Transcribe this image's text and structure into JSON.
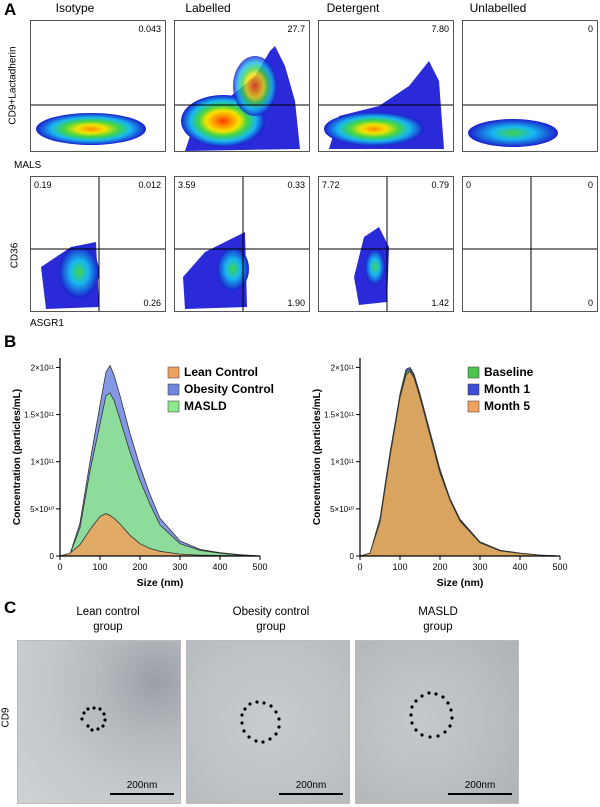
{
  "panelA": {
    "label": "A",
    "columns": [
      "Isotype",
      "Labelled",
      "Detergent",
      "Unlabelled"
    ],
    "top_row": {
      "y_axis_label": "CD9+Lactadherin",
      "x_axis_label": "MALS",
      "values": [
        "0.043",
        "27.7",
        "7.80",
        "0"
      ]
    },
    "bottom_row": {
      "y_axis_label": "CD36",
      "x_axis_label": "ASGR1",
      "quadrants": [
        {
          "ul": "0.19",
          "ur": "0.012",
          "lr": "0.26"
        },
        {
          "ul": "3.59",
          "ur": "0.33",
          "lr": "1.90"
        },
        {
          "ul": "7.72",
          "ur": "0.79",
          "lr": "1.42"
        },
        {
          "ul": "0",
          "ur": "0",
          "lr": "0"
        }
      ]
    }
  },
  "panelB": {
    "label": "B",
    "chart_data": [
      {
        "type": "area",
        "xlabel": "Size (nm)",
        "ylabel": "Concentration (particles/mL)",
        "xlim": [
          0,
          500
        ],
        "ylim": [
          0,
          210000000000.0
        ],
        "xticks": [
          "0",
          "100",
          "200",
          "300",
          "400",
          "500"
        ],
        "yticks": [
          "0",
          "5×10¹⁰",
          "1×10¹¹",
          "1.5×10¹¹",
          "2×10¹¹"
        ],
        "legend_position": "top-right",
        "x": [
          0,
          25,
          50,
          75,
          100,
          115,
          125,
          135,
          150,
          175,
          200,
          225,
          250,
          300,
          350,
          400,
          450,
          500
        ],
        "series": [
          {
            "name": "Lean Control",
            "color": "#f0a15e",
            "values": [
              0,
              3000000000.0,
              12000000000.0,
              28000000000.0,
              42000000000.0,
              45000000000.0,
              43000000000.0,
              40000000000.0,
              34000000000.0,
              22000000000.0,
              13000000000.0,
              8000000000.0,
              5000000000.0,
              2000000000.0,
              1000000000.0,
              500000000.0,
              200000000.0,
              0
            ]
          },
          {
            "name": "Obesity Control",
            "color": "#6f86e0",
            "values": [
              0,
              2000000000.0,
              35000000000.0,
              100000000000.0,
              160000000000.0,
              195000000000.0,
              202000000000.0,
              192000000000.0,
              170000000000.0,
              130000000000.0,
              95000000000.0,
              65000000000.0,
              40000000000.0,
              16000000000.0,
              7000000000.0,
              3500000000.0,
              1500000000.0,
              0
            ]
          },
          {
            "name": "MASLD",
            "color": "#8ee88e",
            "values": [
              0,
              2000000000.0,
              30000000000.0,
              90000000000.0,
              140000000000.0,
              170000000000.0,
              173000000000.0,
              165000000000.0,
              145000000000.0,
              110000000000.0,
              80000000000.0,
              55000000000.0,
              33000000000.0,
              13000000000.0,
              6000000000.0,
              3000000000.0,
              1000000000.0,
              0
            ]
          }
        ]
      },
      {
        "type": "area",
        "xlabel": "Size (nm)",
        "ylabel": "Concentration (particles/mL)",
        "xlim": [
          0,
          500
        ],
        "ylim": [
          0,
          210000000000.0
        ],
        "xticks": [
          "0",
          "100",
          "200",
          "300",
          "400",
          "500"
        ],
        "yticks": [
          "0",
          "5×10¹⁰",
          "1×10¹¹",
          "1.5×10¹¹",
          "2×10¹¹"
        ],
        "legend_position": "top-right",
        "x": [
          0,
          25,
          50,
          75,
          100,
          115,
          125,
          135,
          150,
          175,
          200,
          225,
          250,
          300,
          350,
          400,
          450,
          500
        ],
        "series": [
          {
            "name": "Baseline",
            "color": "#4ec44e",
            "values": [
              0,
              3000000000.0,
              40000000000.0,
              110000000000.0,
              170000000000.0,
              195000000000.0,
              198000000000.0,
              190000000000.0,
              170000000000.0,
              130000000000.0,
              90000000000.0,
              60000000000.0,
              38000000000.0,
              15000000000.0,
              6000000000.0,
              3000000000.0,
              1000000000.0,
              0
            ]
          },
          {
            "name": "Month 1",
            "color": "#3c4ed6",
            "values": [
              0,
              3000000000.0,
              38000000000.0,
              108000000000.0,
              172000000000.0,
              198000000000.0,
              200000000000.0,
              193000000000.0,
              172000000000.0,
              132000000000.0,
              92000000000.0,
              61000000000.0,
              39000000000.0,
              15000000000.0,
              6000000000.0,
              3000000000.0,
              1000000000.0,
              0
            ]
          },
          {
            "name": "Month 5",
            "color": "#f0a15e",
            "values": [
              0,
              3000000000.0,
              36000000000.0,
              105000000000.0,
              168000000000.0,
              192000000000.0,
              196000000000.0,
              189000000000.0,
              168000000000.0,
              128000000000.0,
              88000000000.0,
              59000000000.0,
              37000000000.0,
              14000000000.0,
              5500000000.0,
              2800000000.0,
              1000000000.0,
              0
            ]
          }
        ]
      }
    ]
  },
  "panelC": {
    "label": "C",
    "row_label": "CD9",
    "groups": [
      {
        "title_line1": "Lean control",
        "title_line2": "group",
        "scale": "200nm"
      },
      {
        "title_line1": "Obesity control",
        "title_line2": "group",
        "scale": "200nm"
      },
      {
        "title_line1": "MASLD",
        "title_line2": "group",
        "scale": "200nm"
      }
    ]
  }
}
